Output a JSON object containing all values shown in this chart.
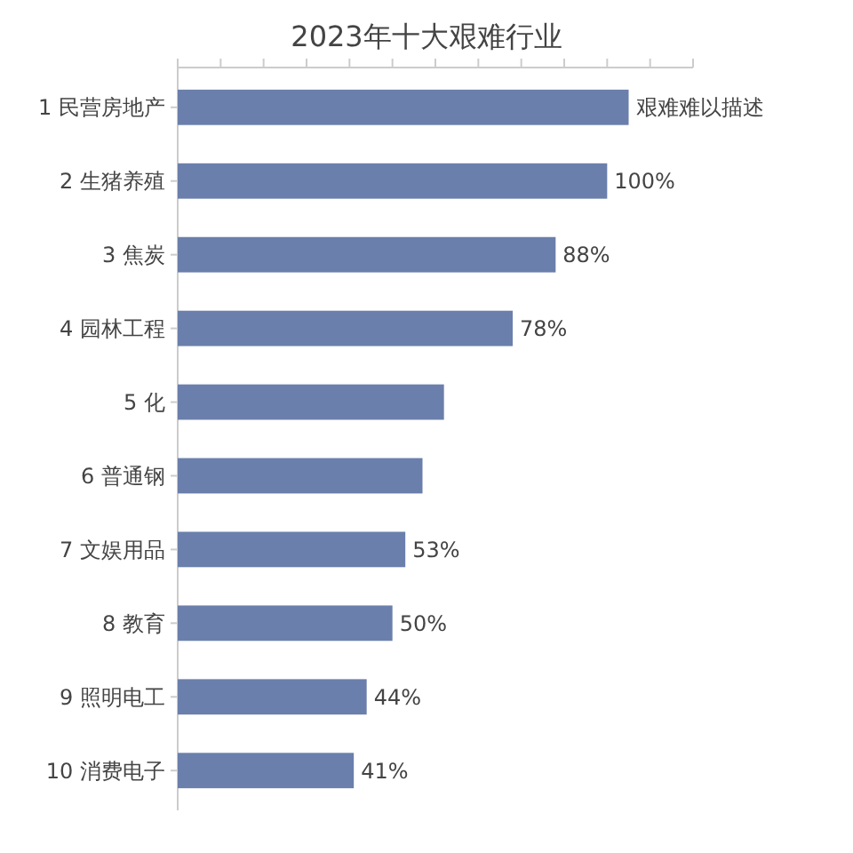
{
  "chart_data": {
    "type": "bar",
    "orientation": "horizontal",
    "title": "2023年十大艰难行业",
    "categories": [
      "1 民营房地产",
      "2 生猪养殖",
      "3 焦炭",
      "4 园林工程",
      "5 化",
      "6 普通钢",
      "7 文娱用品",
      "8 教育",
      "9 照明电工",
      "10 消费电子"
    ],
    "values": [
      105,
      100,
      88,
      78,
      62,
      57,
      53,
      50,
      44,
      41
    ],
    "value_labels": [
      "艰难难以描述",
      "100%",
      "88%",
      "78%",
      null,
      null,
      "53%",
      "50%",
      "44%",
      "41%"
    ],
    "color": "#6a7fab",
    "xlim": [
      0,
      120
    ],
    "xticks": [
      {
        "value": 0,
        "label": null
      },
      {
        "value": 10,
        "label": null
      },
      {
        "value": 20,
        "label": null
      },
      {
        "value": 30,
        "label": null
      },
      {
        "value": 40,
        "label": null
      },
      {
        "value": 50,
        "label": null
      },
      {
        "value": 60,
        "label": null
      },
      {
        "value": 70,
        "label": null
      },
      {
        "value": 80,
        "label": null
      },
      {
        "value": 90,
        "label": null
      },
      {
        "value": 100,
        "label": null
      },
      {
        "value": 110,
        "label": null
      },
      {
        "value": 120,
        "label": null
      }
    ],
    "tick_labels": "y"
  }
}
